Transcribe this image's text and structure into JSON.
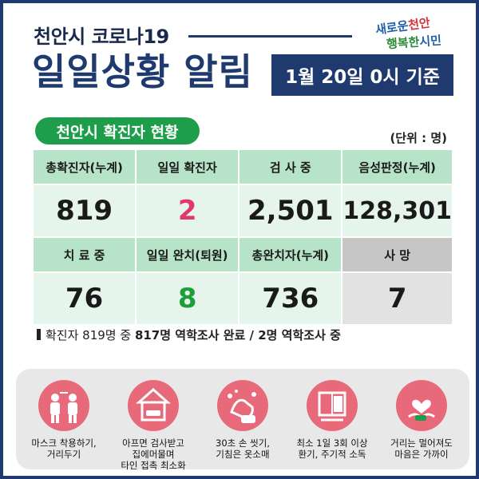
{
  "header": {
    "subtitle": "천안시 코로나19",
    "title": "일일상황 알림",
    "date": "1월 20일 0시 기준",
    "logo_line1a": "새로운",
    "logo_line1b": "천안",
    "logo_line2a": "행복한",
    "logo_line2b": "시민"
  },
  "section": {
    "title": "천안시 확진자 현황",
    "unit": "(단위 : 명)"
  },
  "stats": [
    {
      "label": "총확진자(누계)",
      "value": "819"
    },
    {
      "label": "일일 확진자",
      "value": "2"
    },
    {
      "label": "검 사 중",
      "value": "2,501"
    },
    {
      "label": "음성판정(누계)",
      "value": "128,301"
    },
    {
      "label": "치 료 중",
      "value": "76"
    },
    {
      "label": "일일 완치(퇴원)",
      "value": "8"
    },
    {
      "label": "총완치자(누계)",
      "value": "736"
    },
    {
      "label": "사  망",
      "value": "7"
    }
  ],
  "note": {
    "prefix": "확진자 819명 중 ",
    "bold": "817명 역학조사 완료 / 2명 역학조사 중"
  },
  "rules": [
    {
      "line1": "마스크 착용하기,",
      "line2": "거리두기",
      "line3": "",
      "icon": "mask-distance-icon"
    },
    {
      "line1": "아프면 검사받고",
      "line2": "집에머물며",
      "line3": "타인 접촉 최소화",
      "icon": "stay-home-icon"
    },
    {
      "line1": "30초 손 씻기,",
      "line2": "기침은 옷소매",
      "line3": "",
      "icon": "hand-wash-icon"
    },
    {
      "line1": "최소 1일 3회 이상",
      "line2": "환기, 주기적 소독",
      "line3": "",
      "icon": "ventilation-icon"
    },
    {
      "line1": "거리는 멀어져도",
      "line2": "마음은 가까이",
      "line3": "",
      "icon": "heart-hands-icon"
    }
  ],
  "colors": {
    "navy": "#1e3a6e",
    "green": "#1e9e4a",
    "label_green": "#b7e3c8",
    "value_green": "#e6f5ec",
    "pink": "#e0396d",
    "rule_circle": "#e86a7a"
  }
}
